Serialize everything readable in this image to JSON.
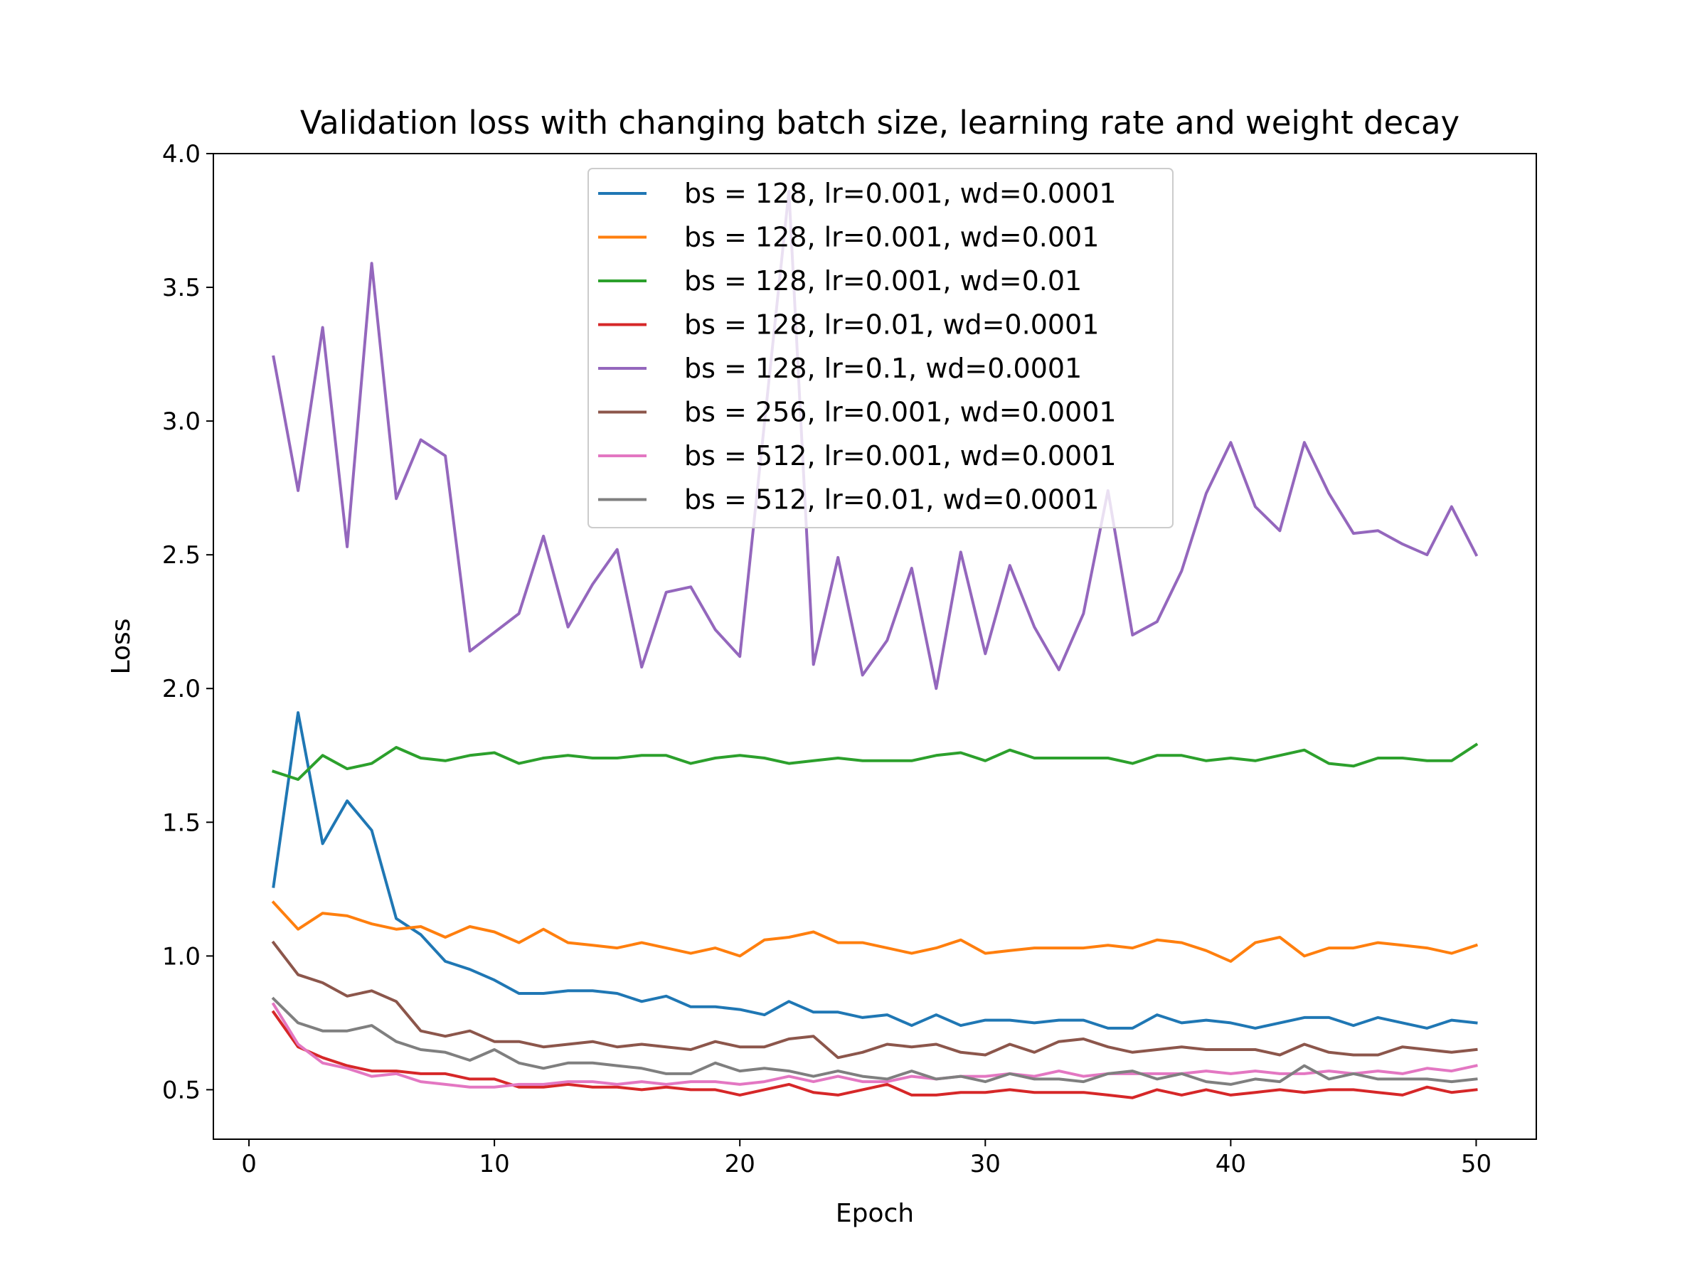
{
  "chart_data": {
    "type": "line",
    "title": "Validation loss with changing batch size, learning rate and weight decay",
    "xlabel": "Epoch",
    "ylabel": "Loss",
    "xlim": [
      -1.45,
      52.45
    ],
    "ylim": [
      0.315,
      4.0
    ],
    "xticks": [
      "0",
      "10",
      "20",
      "30",
      "40",
      "50"
    ],
    "yticks": [
      "0.5",
      "1.0",
      "1.5",
      "2.0",
      "2.5",
      "3.0",
      "3.5",
      "4.0"
    ],
    "legend_position": "upper center",
    "grid": false,
    "x": [
      1,
      2,
      3,
      4,
      5,
      6,
      7,
      8,
      9,
      10,
      11,
      12,
      13,
      14,
      15,
      16,
      17,
      18,
      19,
      20,
      21,
      22,
      23,
      24,
      25,
      26,
      27,
      28,
      29,
      30,
      31,
      32,
      33,
      34,
      35,
      36,
      37,
      38,
      39,
      40,
      41,
      42,
      43,
      44,
      45,
      46,
      47,
      48,
      49,
      50
    ],
    "series": [
      {
        "name": "bs = 128, lr=0.001, wd=0.0001",
        "color": "#1f77b4",
        "values": [
          1.26,
          1.91,
          1.42,
          1.58,
          1.47,
          1.14,
          1.08,
          0.98,
          0.95,
          0.91,
          0.86,
          0.86,
          0.87,
          0.87,
          0.86,
          0.83,
          0.85,
          0.81,
          0.81,
          0.8,
          0.78,
          0.83,
          0.79,
          0.79,
          0.77,
          0.78,
          0.74,
          0.78,
          0.74,
          0.76,
          0.76,
          0.75,
          0.76,
          0.76,
          0.73,
          0.73,
          0.78,
          0.75,
          0.76,
          0.75,
          0.73,
          0.75,
          0.77,
          0.77,
          0.74,
          0.77,
          0.75,
          0.73,
          0.76,
          0.75
        ]
      },
      {
        "name": "bs = 128, lr=0.001, wd=0.001",
        "color": "#ff7f0e",
        "values": [
          1.2,
          1.1,
          1.16,
          1.15,
          1.12,
          1.1,
          1.11,
          1.07,
          1.11,
          1.09,
          1.05,
          1.1,
          1.05,
          1.04,
          1.03,
          1.05,
          1.03,
          1.01,
          1.03,
          1.0,
          1.06,
          1.07,
          1.09,
          1.05,
          1.05,
          1.03,
          1.01,
          1.03,
          1.06,
          1.01,
          1.02,
          1.03,
          1.03,
          1.03,
          1.04,
          1.03,
          1.06,
          1.05,
          1.02,
          0.98,
          1.05,
          1.07,
          1.0,
          1.03,
          1.03,
          1.05,
          1.04,
          1.03,
          1.01,
          1.04
        ]
      },
      {
        "name": "bs = 128, lr=0.001, wd=0.01",
        "color": "#2ca02c",
        "values": [
          1.69,
          1.66,
          1.75,
          1.7,
          1.72,
          1.78,
          1.74,
          1.73,
          1.75,
          1.76,
          1.72,
          1.74,
          1.75,
          1.74,
          1.74,
          1.75,
          1.75,
          1.72,
          1.74,
          1.75,
          1.74,
          1.72,
          1.73,
          1.74,
          1.73,
          1.73,
          1.73,
          1.75,
          1.76,
          1.73,
          1.77,
          1.74,
          1.74,
          1.74,
          1.74,
          1.72,
          1.75,
          1.75,
          1.73,
          1.74,
          1.73,
          1.75,
          1.77,
          1.72,
          1.71,
          1.74,
          1.74,
          1.73,
          1.73,
          1.79
        ]
      },
      {
        "name": "bs = 128, lr=0.01, wd=0.0001",
        "color": "#d62728",
        "values": [
          0.79,
          0.66,
          0.62,
          0.59,
          0.57,
          0.57,
          0.56,
          0.56,
          0.54,
          0.54,
          0.51,
          0.51,
          0.52,
          0.51,
          0.51,
          0.5,
          0.51,
          0.5,
          0.5,
          0.48,
          0.5,
          0.52,
          0.49,
          0.48,
          0.5,
          0.52,
          0.48,
          0.48,
          0.49,
          0.49,
          0.5,
          0.49,
          0.49,
          0.49,
          0.48,
          0.47,
          0.5,
          0.48,
          0.5,
          0.48,
          0.49,
          0.5,
          0.49,
          0.5,
          0.5,
          0.49,
          0.48,
          0.51,
          0.49,
          0.5
        ]
      },
      {
        "name": "bs = 128, lr=0.1, wd=0.0001",
        "color": "#9467bd",
        "values": [
          3.24,
          2.74,
          3.35,
          2.53,
          3.59,
          2.71,
          2.93,
          2.87,
          2.14,
          2.21,
          2.28,
          2.57,
          2.23,
          2.39,
          2.52,
          2.08,
          2.36,
          2.38,
          2.22,
          2.12,
          2.99,
          3.86,
          2.09,
          2.49,
          2.05,
          2.18,
          2.45,
          2.0,
          2.51,
          2.13,
          2.46,
          2.23,
          2.07,
          2.28,
          2.74,
          2.2,
          2.25,
          2.44,
          2.73,
          2.92,
          2.68,
          2.59,
          2.92,
          2.73,
          2.58,
          2.59,
          2.54,
          2.5,
          2.68,
          2.5
        ]
      },
      {
        "name": "bs = 256, lr=0.001, wd=0.0001",
        "color": "#8c564b",
        "values": [
          1.05,
          0.93,
          0.9,
          0.85,
          0.87,
          0.83,
          0.72,
          0.7,
          0.72,
          0.68,
          0.68,
          0.66,
          0.67,
          0.68,
          0.66,
          0.67,
          0.66,
          0.65,
          0.68,
          0.66,
          0.66,
          0.69,
          0.7,
          0.62,
          0.64,
          0.67,
          0.66,
          0.67,
          0.64,
          0.63,
          0.67,
          0.64,
          0.68,
          0.69,
          0.66,
          0.64,
          0.65,
          0.66,
          0.65,
          0.65,
          0.65,
          0.63,
          0.67,
          0.64,
          0.63,
          0.63,
          0.66,
          0.65,
          0.64,
          0.65
        ]
      },
      {
        "name": "bs = 512, lr=0.001, wd=0.0001",
        "color": "#e377c2",
        "values": [
          0.82,
          0.67,
          0.6,
          0.58,
          0.55,
          0.56,
          0.53,
          0.52,
          0.51,
          0.51,
          0.52,
          0.52,
          0.53,
          0.53,
          0.52,
          0.53,
          0.52,
          0.53,
          0.53,
          0.52,
          0.53,
          0.55,
          0.53,
          0.55,
          0.53,
          0.53,
          0.55,
          0.54,
          0.55,
          0.55,
          0.56,
          0.55,
          0.57,
          0.55,
          0.56,
          0.56,
          0.56,
          0.56,
          0.57,
          0.56,
          0.57,
          0.56,
          0.56,
          0.57,
          0.56,
          0.57,
          0.56,
          0.58,
          0.57,
          0.59
        ]
      },
      {
        "name": "bs = 512, lr=0.01, wd=0.0001",
        "color": "#7f7f7f",
        "values": [
          0.84,
          0.75,
          0.72,
          0.72,
          0.74,
          0.68,
          0.65,
          0.64,
          0.61,
          0.65,
          0.6,
          0.58,
          0.6,
          0.6,
          0.59,
          0.58,
          0.56,
          0.56,
          0.6,
          0.57,
          0.58,
          0.57,
          0.55,
          0.57,
          0.55,
          0.54,
          0.57,
          0.54,
          0.55,
          0.53,
          0.56,
          0.54,
          0.54,
          0.53,
          0.56,
          0.57,
          0.54,
          0.56,
          0.53,
          0.52,
          0.54,
          0.53,
          0.59,
          0.54,
          0.56,
          0.54,
          0.54,
          0.54,
          0.53,
          0.54
        ]
      }
    ]
  }
}
